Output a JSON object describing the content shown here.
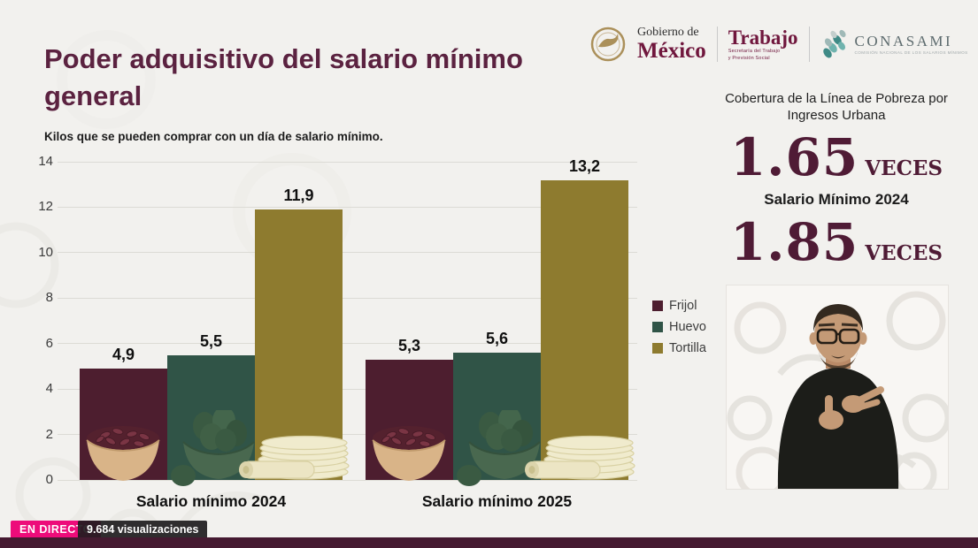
{
  "header": {
    "title": "Poder adquisitivo del salario mínimo general",
    "subtitle": "Kilos que se pueden comprar con un día de salario mínimo."
  },
  "logos": {
    "gobierno_line1": "Gobierno de",
    "gobierno_line2": "México",
    "trabajo": "Trabajo",
    "trabajo_sub1": "Secretaría del Trabajo",
    "trabajo_sub2": "y Previsión Social",
    "conasami": "CONASAMI",
    "conasami_sub": "COMISIÓN NACIONAL DE LOS SALARIOS MÍNIMOS"
  },
  "right_panel": {
    "coverage_title": "Cobertura de la Línea de Pobreza por Ingresos Urbana",
    "value_2024": "1.65",
    "unit_2024": "VECES",
    "label_2024": "Salario Mínimo 2024",
    "value_2025": "1.85",
    "unit_2025": "VECES"
  },
  "chart_data": {
    "type": "bar",
    "title": "Poder adquisitivo del salario mínimo general",
    "subtitle": "Kilos que se pueden comprar con un día de salario mínimo.",
    "categories": [
      "Salario mínimo 2024",
      "Salario mínimo 2025"
    ],
    "series": [
      {
        "name": "Frijol",
        "color": "#4d1e2f",
        "values": [
          4.9,
          5.3
        ]
      },
      {
        "name": "Huevo",
        "color": "#305447",
        "values": [
          5.5,
          5.6
        ]
      },
      {
        "name": "Tortilla",
        "color": "#8e7b2f",
        "values": [
          11.9,
          13.2
        ]
      }
    ],
    "value_labels": [
      [
        "4,9",
        "5,5",
        "11,9"
      ],
      [
        "5,3",
        "5,6",
        "13,2"
      ]
    ],
    "ylim": [
      0,
      14
    ],
    "yticks": [
      0,
      2,
      4,
      6,
      8,
      10,
      12,
      14
    ],
    "grid": true,
    "legend_position": "right"
  },
  "status_bar": {
    "live_badge": "EN DIRECTO",
    "views": "9.684 visualizaciones"
  },
  "colors": {
    "accent_maroon": "#5b2240",
    "bar_frijol": "#4d1e2f",
    "bar_huevo": "#305447",
    "bar_tortilla": "#8e7b2f",
    "live_pink": "#ed0c7a",
    "bottom_bar": "#451a31"
  }
}
